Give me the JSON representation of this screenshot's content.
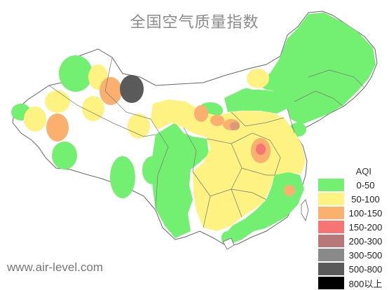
{
  "title": "全国空气质量指数",
  "watermark": "www.air-level.com",
  "legend": {
    "title": "AQI",
    "items": [
      {
        "label": "0-50",
        "color": "#73f071"
      },
      {
        "label": "50-100",
        "color": "#fdf282"
      },
      {
        "label": "100-150",
        "color": "#fbb070"
      },
      {
        "label": "150-200",
        "color": "#f77474"
      },
      {
        "label": "200-300",
        "color": "#b87878"
      },
      {
        "label": "300-500",
        "color": "#8a8a8a"
      },
      {
        "label": "500-800",
        "color": "#5a5a5a"
      },
      {
        "label": "800以上",
        "color": "#000000"
      }
    ]
  },
  "colors": {
    "good": "#73f071",
    "moderate": "#fdf282",
    "unhealthy_sensitive": "#fbb070",
    "unhealthy": "#f77474",
    "very_unhealthy": "#b87878",
    "hazardous": "#5a5a5a",
    "border": "#666666",
    "background": "#ffffff"
  }
}
